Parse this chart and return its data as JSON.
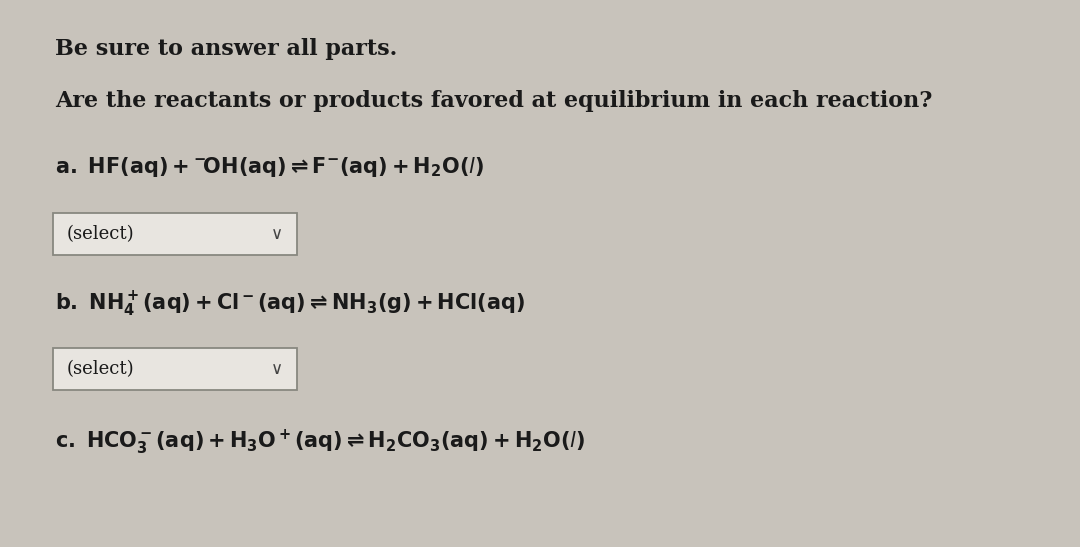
{
  "bg_color": "#c8c3bb",
  "text_color": "#1a1a1a",
  "figsize": [
    10.8,
    5.47
  ],
  "dpi": 100,
  "header1": "Be sure to answer all parts.",
  "header2": "Are the reactants or products favored at equilibrium in each reaction?",
  "select_box_facecolor": "#e8e5e0",
  "select_box_edgecolor": "#888880",
  "font_size_header": 16,
  "font_size_reaction": 15,
  "font_size_select": 13
}
